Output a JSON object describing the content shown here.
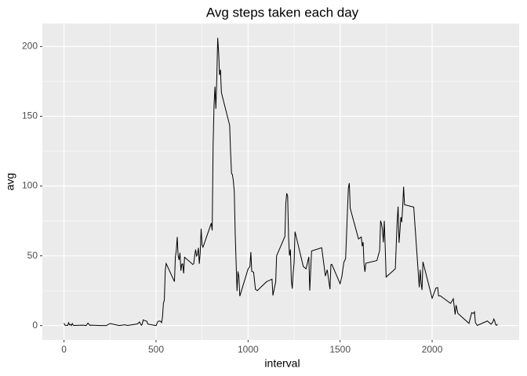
{
  "chart_data": {
    "type": "line",
    "title": "Avg steps taken each day",
    "x_label": "interval",
    "y_label": "avg",
    "color": "#000000",
    "x": [
      0,
      5,
      10,
      15,
      20,
      25,
      30,
      35,
      40,
      45,
      50,
      55,
      100,
      110,
      120,
      130,
      140,
      150,
      200,
      230,
      250,
      300,
      330,
      345,
      400,
      410,
      420,
      425,
      430,
      440,
      450,
      455,
      500,
      510,
      520,
      525,
      530,
      535,
      540,
      545,
      550,
      555,
      600,
      605,
      610,
      615,
      620,
      625,
      630,
      635,
      640,
      645,
      650,
      655,
      700,
      705,
      710,
      715,
      720,
      725,
      730,
      735,
      740,
      745,
      750,
      755,
      800,
      805,
      810,
      815,
      820,
      825,
      830,
      835,
      840,
      845,
      850,
      855,
      900,
      905,
      910,
      915,
      920,
      925,
      930,
      935,
      940,
      945,
      950,
      955,
      1000,
      1010,
      1015,
      1020,
      1030,
      1040,
      1050,
      1100,
      1130,
      1135,
      1140,
      1150,
      1155,
      1200,
      1205,
      1210,
      1215,
      1220,
      1225,
      1230,
      1235,
      1240,
      1245,
      1250,
      1255,
      1300,
      1315,
      1330,
      1335,
      1345,
      1400,
      1420,
      1430,
      1445,
      1450,
      1455,
      1500,
      1510,
      1520,
      1530,
      1535,
      1540,
      1545,
      1550,
      1555,
      1600,
      1615,
      1620,
      1625,
      1630,
      1635,
      1640,
      1700,
      1715,
      1720,
      1725,
      1730,
      1735,
      1740,
      1745,
      1750,
      1800,
      1805,
      1810,
      1815,
      1820,
      1825,
      1830,
      1835,
      1840,
      1845,
      1850,
      1900,
      1930,
      1935,
      1940,
      1945,
      1950,
      2000,
      2020,
      2030,
      2035,
      2045,
      2100,
      2115,
      2125,
      2130,
      2140,
      2200,
      2215,
      2225,
      2230,
      2235,
      2245,
      2300,
      2320,
      2330,
      2335,
      2340,
      2345,
      2350,
      2355
    ],
    "values": [
      1.7,
      0.3,
      0.1,
      0.2,
      0.1,
      2.1,
      0.5,
      0.9,
      0,
      1.5,
      0.3,
      0.1,
      0.3,
      0.2,
      0,
      1.8,
      0.2,
      0.3,
      0,
      0,
      1.5,
      0,
      0.6,
      0.1,
      1.2,
      2.6,
      0.3,
      1.0,
      4.1,
      3.5,
      3.1,
      1.1,
      0,
      3.0,
      3.3,
      3.0,
      2.1,
      6.1,
      16.0,
      18.3,
      39.5,
      44.5,
      31.5,
      49.3,
      53.8,
      63.5,
      50.0,
      47.1,
      52.2,
      39.3,
      44.0,
      44.2,
      37.4,
      49.0,
      43.8,
      44.4,
      50.5,
      54.5,
      49.9,
      51.0,
      55.7,
      44.3,
      52.3,
      69.5,
      57.8,
      56.2,
      73.4,
      68.2,
      129.4,
      157.5,
      171.2,
      155.4,
      177.3,
      206.2,
      195.9,
      179.6,
      183.4,
      167.0,
      143.5,
      124.0,
      109.1,
      108.1,
      103.7,
      96.0,
      66.2,
      45.2,
      24.8,
      38.8,
      35.0,
      21.1,
      40.6,
      42.4,
      52.7,
      38.9,
      38.3,
      26.0,
      25.1,
      31.4,
      33.3,
      21.6,
      25.0,
      31.3,
      50.0,
      63.9,
      87.6,
      94.8,
      92.8,
      63.4,
      50.2,
      54.5,
      32.4,
      26.5,
      37.7,
      45.1,
      67.3,
      42.3,
      40.7,
      49.3,
      25.1,
      53.5,
      55.8,
      35.5,
      40.0,
      26.1,
      43.6,
      43.9,
      30.0,
      35.5,
      45.2,
      48.1,
      65.3,
      82.9,
      98.7,
      102.1,
      84.0,
      62.1,
      63.5,
      56.9,
      59.8,
      43.9,
      38.6,
      44.7,
      46.6,
      54.0,
      75.2,
      72.9,
      68.9,
      59.7,
      75.1,
      56.5,
      34.8,
      40.7,
      58.0,
      74.7,
      85.3,
      59.3,
      67.8,
      77.7,
      74.2,
      85.3,
      99.5,
      86.6,
      84.9,
      27.4,
      40.0,
      30.2,
      25.5,
      45.7,
      19.6,
      26.8,
      27.3,
      21.3,
      21.3,
      15.9,
      19.2,
      8.0,
      14.7,
      8.7,
      1.6,
      9.3,
      8.7,
      9.8,
      2.2,
      0.1,
      3.3,
      1.0,
      2.6,
      4.7,
      3.3,
      0.6,
      0.2,
      1.1
    ],
    "xlim": [
      -117.75,
      2472.75
    ],
    "xticks": [
      0,
      500,
      1000,
      1500,
      2000
    ],
    "ylim": [
      -10.3,
      216.5
    ],
    "yticks": [
      0,
      50,
      100,
      150,
      200
    ],
    "grid": true
  }
}
